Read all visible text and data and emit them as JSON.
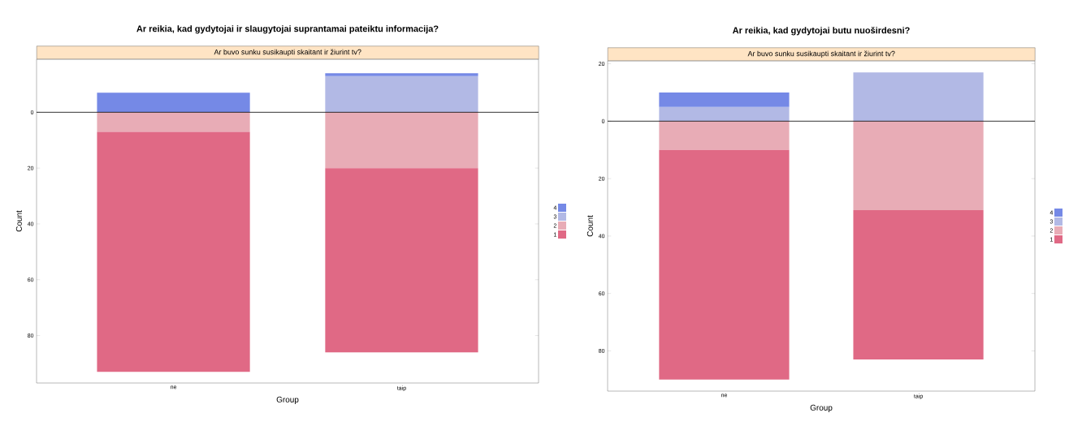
{
  "chart_data": [
    {
      "type": "bar",
      "stacked": true,
      "title": "Ar reikia, kad gydytojai ir slaugytojai suprantamai pateiktu informacija?",
      "subtitle": "Ar buvo sunku susikaupti skaitant ir žiurint tv?",
      "xlabel": "Group",
      "ylabel": "Count",
      "categories": [
        "ne",
        "taip"
      ],
      "ylim": [
        97,
        -19
      ],
      "yticks": [
        0,
        20,
        40,
        60,
        80
      ],
      "legend": "right",
      "ref_lines": [
        {
          "axis": "y",
          "value": 0,
          "color": "#000000"
        }
      ],
      "series": [
        {
          "name": "3",
          "color": "#b2b9e5",
          "values": [
            0,
            -13
          ]
        },
        {
          "name": "4",
          "color": "#7589e6",
          "values": [
            -7,
            -1
          ]
        },
        {
          "name": "2",
          "color": "#e8acb6",
          "values": [
            7,
            20
          ]
        },
        {
          "name": "1",
          "color": "#e06985",
          "values": [
            86,
            66
          ]
        }
      ]
    },
    {
      "type": "bar",
      "stacked": true,
      "title": "Ar reikia, kad gydytojai butu nuoširdesni?",
      "subtitle": "Ar buvo sunku susikaupti skaitant ir žiurint tv?",
      "xlabel": "Group",
      "ylabel": "Count",
      "categories": [
        "ne",
        "taip"
      ],
      "ylim": [
        94,
        -21
      ],
      "yticks": [
        {
          "value": -20,
          "label": "20"
        },
        0,
        20,
        40,
        60,
        80
      ],
      "legend": "right",
      "ref_lines": [
        {
          "axis": "y",
          "value": 0,
          "color": "#000000"
        }
      ],
      "series": [
        {
          "name": "3",
          "color": "#b2b9e5",
          "values": [
            -5,
            -17
          ]
        },
        {
          "name": "4",
          "color": "#7589e6",
          "values": [
            -5,
            0
          ]
        },
        {
          "name": "2",
          "color": "#e8acb6",
          "values": [
            10,
            31
          ]
        },
        {
          "name": "1",
          "color": "#e06985",
          "values": [
            80,
            52
          ]
        }
      ]
    }
  ]
}
